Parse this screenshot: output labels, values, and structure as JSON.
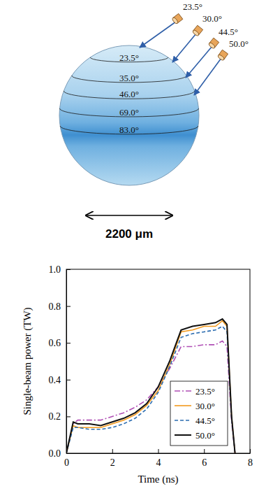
{
  "diagram": {
    "beam_labels": [
      "23.5°",
      "30.0°",
      "44.5°",
      "50.0°"
    ],
    "latitude_labels": [
      "23.5°",
      "35.0°",
      "46.0°",
      "69.0°",
      "83.0°"
    ],
    "scale_label": "2200 μm"
  },
  "chart_data": {
    "type": "line",
    "xlabel": "Time (ns)",
    "ylabel": "Single-beam power (TW)",
    "x": [
      0,
      0.3,
      0.5,
      1,
      1.5,
      2,
      2.5,
      3,
      3.5,
      4,
      4.5,
      5,
      5.5,
      6,
      6.5,
      6.8,
      7,
      7.2,
      7.35
    ],
    "series": [
      {
        "name": "23.5°",
        "color": "#b04fb5",
        "line_style": "dashdot",
        "values": [
          0,
          0.16,
          0.18,
          0.18,
          0.18,
          0.2,
          0.22,
          0.25,
          0.29,
          0.36,
          0.46,
          0.58,
          0.58,
          0.59,
          0.59,
          0.61,
          0.58,
          0.17,
          0
        ]
      },
      {
        "name": "30.0°",
        "color": "#f39a1e",
        "line_style": "solid",
        "values": [
          0,
          0.15,
          0.14,
          0.14,
          0.14,
          0.16,
          0.18,
          0.21,
          0.26,
          0.34,
          0.48,
          0.66,
          0.67,
          0.69,
          0.69,
          0.72,
          0.69,
          0.2,
          0
        ]
      },
      {
        "name": "44.5°",
        "color": "#2b6cb0",
        "line_style": "dashed",
        "values": [
          0,
          0.14,
          0.14,
          0.13,
          0.13,
          0.14,
          0.16,
          0.19,
          0.24,
          0.33,
          0.47,
          0.63,
          0.65,
          0.66,
          0.67,
          0.69,
          0.66,
          0.19,
          0
        ]
      },
      {
        "name": "50.0°",
        "color": "#111111",
        "line_style": "solid",
        "values": [
          0,
          0.17,
          0.16,
          0.16,
          0.15,
          0.17,
          0.19,
          0.22,
          0.27,
          0.36,
          0.5,
          0.67,
          0.69,
          0.7,
          0.71,
          0.73,
          0.7,
          0.2,
          0
        ]
      }
    ],
    "xlim": [
      0,
      8
    ],
    "ylim": [
      0,
      1
    ],
    "xticks": [
      0,
      2,
      4,
      6,
      8
    ],
    "yticks": [
      {
        "value": 0,
        "label": "0.0"
      },
      {
        "value": 0.2,
        "label": "0.2"
      },
      {
        "value": 0.4,
        "label": "0.4"
      },
      {
        "value": 0.6,
        "label": "0.6"
      },
      {
        "value": 0.8,
        "label": "0.8"
      },
      {
        "value": 1,
        "label": "1.0"
      }
    ],
    "legend": "lower right"
  }
}
